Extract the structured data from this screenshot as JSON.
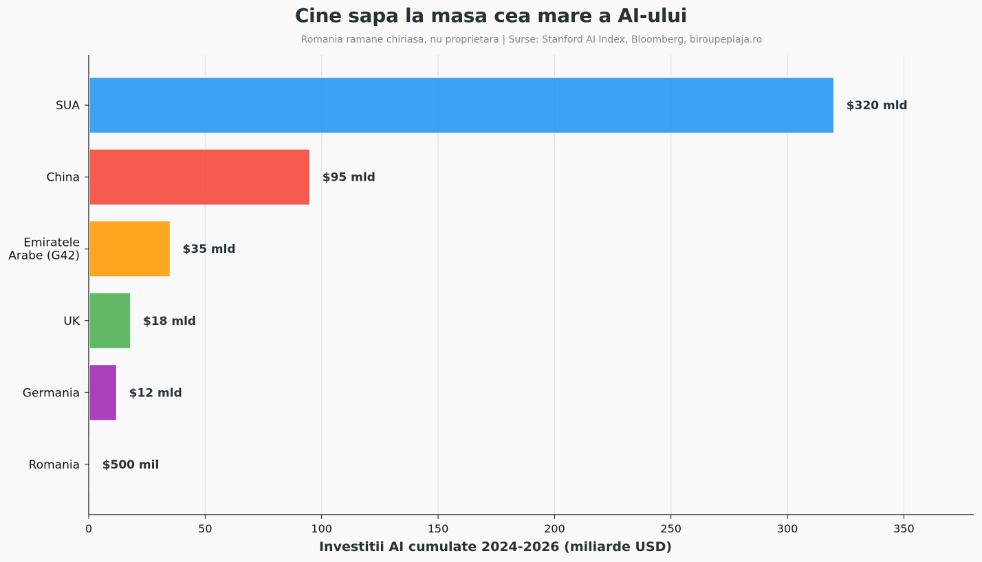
{
  "title": "Cine sapa la masa cea mare a AI-ului",
  "subtitle": "Romania ramane chiriasa, nu proprietara | Surse: Stanford AI Index, Bloomberg, biroupeplaja.ro",
  "chart_data": {
    "type": "bar",
    "orientation": "horizontal",
    "title": "Cine sapa la masa cea mare a AI-ului",
    "subtitle": "Romania ramane chiriasa, nu proprietara | Surse: Stanford AI Index, Bloomberg, biroupeplaja.ro",
    "xlabel": "Investitii AI cumulate 2024-2026 (miliarde USD)",
    "ylabel": "",
    "xlim": [
      0,
      380
    ],
    "xticks": [
      0,
      50,
      100,
      150,
      200,
      250,
      300,
      350
    ],
    "grid": "vertical",
    "categories": [
      "SUA",
      "China",
      "Emiratele\nArabe (G42)",
      "UK",
      "Germania",
      "Romania"
    ],
    "values": [
      320,
      95,
      35,
      18,
      12,
      0.5
    ],
    "data_labels": [
      "$320 mld",
      "$95 mld",
      "$35 mld",
      "$18 mld",
      "$12 mld",
      "$500 mil"
    ],
    "colors": [
      "#2196f3",
      "#f44336",
      "#ff9800",
      "#4caf50",
      "#9c27b0",
      "#607d8b"
    ]
  }
}
